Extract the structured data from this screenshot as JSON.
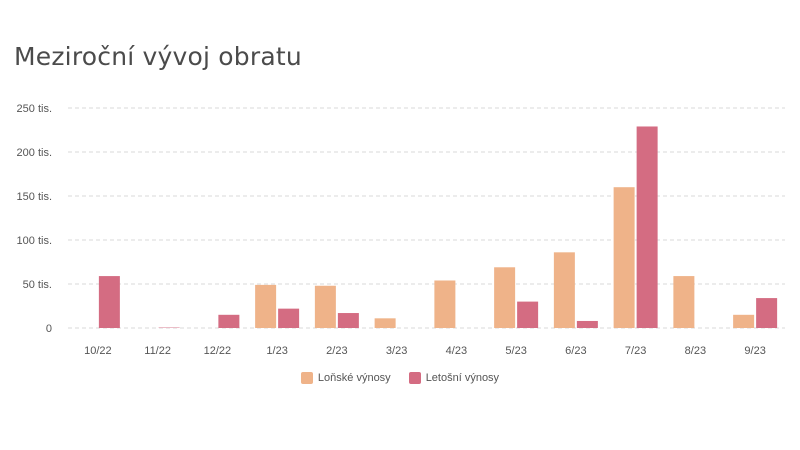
{
  "title": "Meziroční vývoj obratu",
  "colors": {
    "last_year": "#EFB389",
    "this_year": "#D46C82",
    "grid": "#d9d9d9"
  },
  "chart_data": {
    "type": "bar",
    "title": "Meziroční vývoj obratu",
    "categories": [
      "10/22",
      "11/22",
      "12/22",
      "1/23",
      "2/23",
      "3/23",
      "4/23",
      "5/23",
      "6/23",
      "7/23",
      "8/23",
      "9/23"
    ],
    "series": [
      {
        "name": "Loňské výnosy",
        "values": [
          0,
          0,
          0,
          49,
          48,
          11,
          54,
          69,
          86,
          160,
          59,
          15
        ]
      },
      {
        "name": "Letošní výnosy",
        "values": [
          59,
          0.5,
          15,
          22,
          17,
          0,
          0,
          30,
          8,
          229,
          0,
          34
        ]
      }
    ],
    "yticks": [
      "0",
      "50 tis.",
      "100 tis.",
      "150 tis.",
      "200 tis.",
      "250 tis."
    ],
    "ylim": [
      0,
      250
    ],
    "xlabel": "",
    "ylabel": "",
    "grid": true,
    "legend_position": "bottom-center"
  }
}
